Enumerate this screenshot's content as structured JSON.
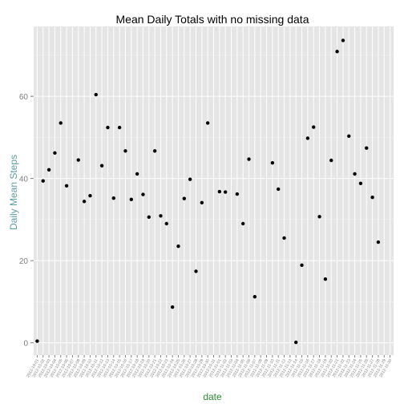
{
  "chart_data": {
    "type": "scatter",
    "title": "Mean Daily Totals with no missing data",
    "xlabel": "date",
    "ylabel": "Daily Mean Steps",
    "ylim": [
      -3,
      77
    ],
    "yticks": [
      0,
      20,
      40,
      60
    ],
    "grid": true,
    "legend": "none",
    "x": [
      "2012-10-01",
      "2012-10-02",
      "2012-10-03",
      "2012-10-04",
      "2012-10-05",
      "2012-10-06",
      "2012-10-07",
      "2012-10-08",
      "2012-10-09",
      "2012-10-10",
      "2012-10-11",
      "2012-10-12",
      "2012-10-13",
      "2012-10-14",
      "2012-10-15",
      "2012-10-16",
      "2012-10-17",
      "2012-10-18",
      "2012-10-19",
      "2012-10-20",
      "2012-10-21",
      "2012-10-22",
      "2012-10-23",
      "2012-10-24",
      "2012-10-25",
      "2012-10-26",
      "2012-10-27",
      "2012-10-28",
      "2012-10-29",
      "2012-10-30",
      "2012-10-31",
      "2012-11-01",
      "2012-11-02",
      "2012-11-03",
      "2012-11-04",
      "2012-11-05",
      "2012-11-06",
      "2012-11-07",
      "2012-11-08",
      "2012-11-09",
      "2012-11-10",
      "2012-11-11",
      "2012-11-12",
      "2012-11-13",
      "2012-11-14",
      "2012-11-15",
      "2012-11-16",
      "2012-11-17",
      "2012-11-18",
      "2012-11-19",
      "2012-11-20",
      "2012-11-21",
      "2012-11-22",
      "2012-11-23",
      "2012-11-24",
      "2012-11-25",
      "2012-11-26",
      "2012-11-27",
      "2012-11-28",
      "2012-11-29",
      "2012-11-30"
    ],
    "y": [
      0.4,
      39.4,
      42.1,
      46.2,
      53.5,
      38.2,
      null,
      44.5,
      34.4,
      35.8,
      60.4,
      43.1,
      52.4,
      35.2,
      52.4,
      46.7,
      34.9,
      41.1,
      36.1,
      30.6,
      46.7,
      30.9,
      29.0,
      8.7,
      23.5,
      35.1,
      39.8,
      17.4,
      34.1,
      53.5,
      null,
      36.8,
      36.7,
      null,
      36.2,
      29.0,
      44.7,
      11.2,
      null,
      null,
      43.8,
      37.4,
      25.5,
      null,
      0.1,
      18.9,
      49.8,
      52.5,
      30.7,
      15.5,
      44.4,
      70.9,
      73.6,
      50.3,
      41.1,
      38.8,
      47.4,
      35.4,
      24.5,
      null,
      null
    ]
  }
}
